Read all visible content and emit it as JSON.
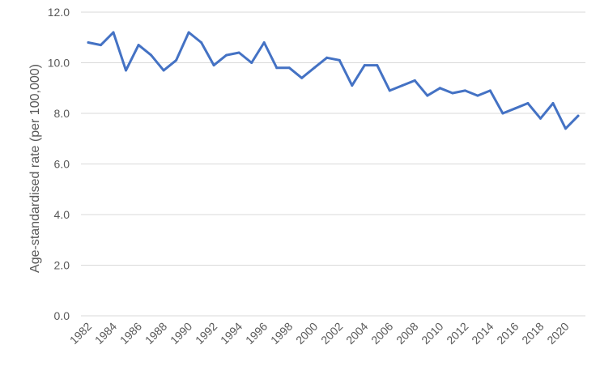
{
  "chart_data": {
    "type": "line",
    "title": "",
    "xlabel": "",
    "ylabel": "Age-standardised rate (per 100,000)",
    "ylim": [
      0,
      12
    ],
    "yticks": [
      "0.0",
      "2.0",
      "4.0",
      "6.0",
      "8.0",
      "10.0",
      "12.0"
    ],
    "grid": true,
    "x": [
      1982,
      1983,
      1984,
      1985,
      1986,
      1987,
      1988,
      1989,
      1990,
      1991,
      1992,
      1993,
      1994,
      1995,
      1996,
      1997,
      1998,
      1999,
      2000,
      2001,
      2002,
      2003,
      2004,
      2005,
      2006,
      2007,
      2008,
      2009,
      2010,
      2011,
      2012,
      2013,
      2014,
      2015,
      2016,
      2017,
      2018,
      2019,
      2020,
      2021
    ],
    "xtick_labels": [
      "1982",
      "1984",
      "1986",
      "1988",
      "1990",
      "1992",
      "1994",
      "1996",
      "1998",
      "2000",
      "2002",
      "2004",
      "2006",
      "2008",
      "2010",
      "2012",
      "2014",
      "2016",
      "2018",
      "2020"
    ],
    "series": [
      {
        "color": "#4472c4",
        "values": [
          10.8,
          10.7,
          11.2,
          9.7,
          10.7,
          10.3,
          9.7,
          10.1,
          11.2,
          10.8,
          9.9,
          10.3,
          10.4,
          10.0,
          10.8,
          9.8,
          9.8,
          9.4,
          9.8,
          10.2,
          10.1,
          9.1,
          9.9,
          9.9,
          8.9,
          9.1,
          9.3,
          8.7,
          9.0,
          8.8,
          8.9,
          8.7,
          8.9,
          8.0,
          8.2,
          8.4,
          7.8,
          8.4,
          7.4,
          7.9
        ]
      }
    ]
  }
}
